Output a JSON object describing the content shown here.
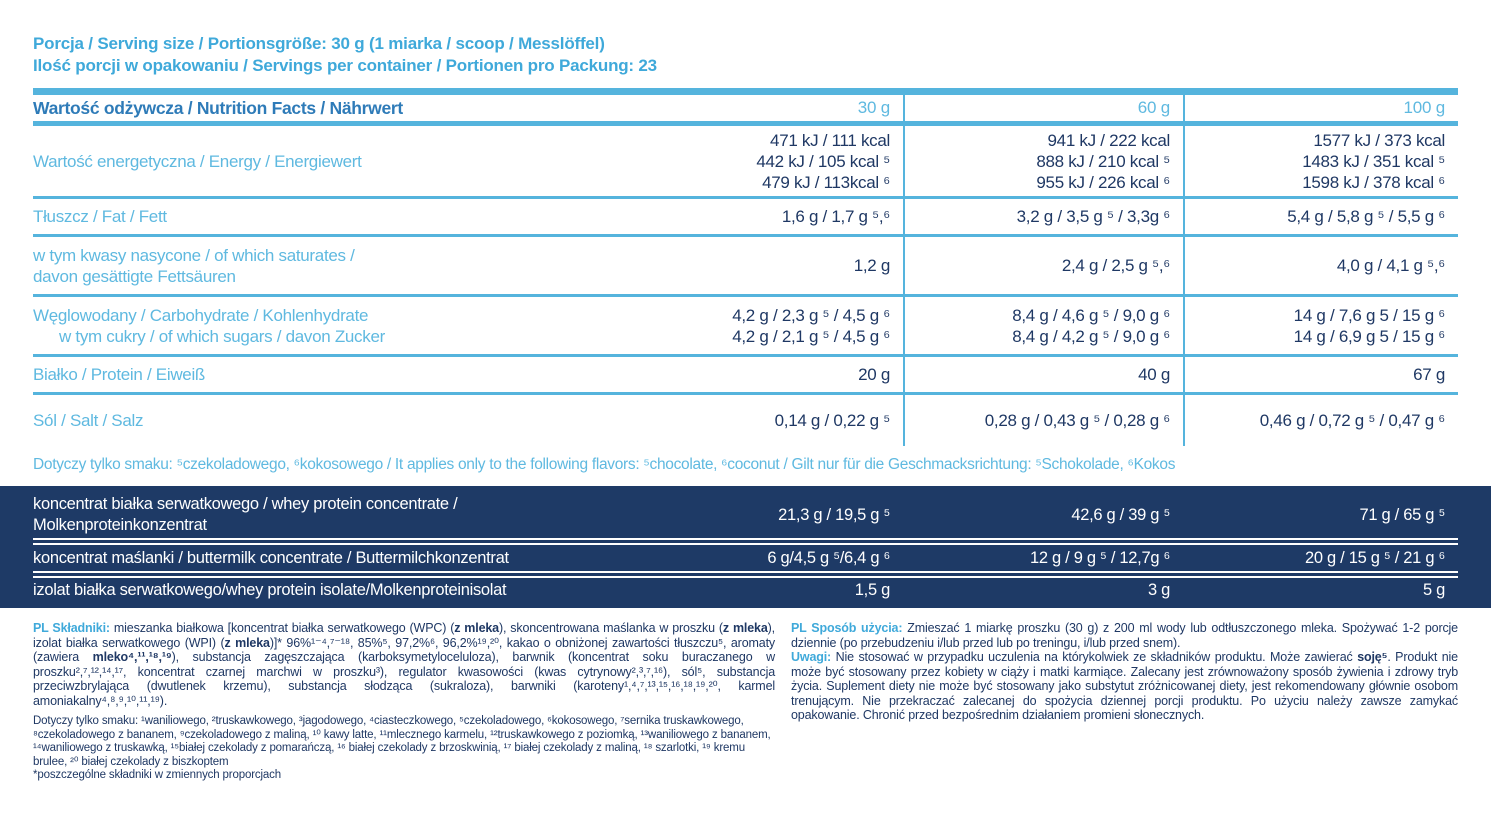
{
  "colors": {
    "cyan_accent": "#3FA9DA",
    "label_cyan": "#5FB9E0",
    "line_cyan": "#55B4DD",
    "header_blue": "#2E7BB8",
    "value_navy": "#1F3864",
    "navy_background": "#1E3A66",
    "white": "#FFFFFF"
  },
  "serving": {
    "line1": "Porcja / Serving size / Portionsgröße: 30 g (1 miarka / scoop / Messlöffel)",
    "line2": "Ilość porcji w opakowaniu / Servings per container / Portionen pro Packung: 23"
  },
  "nutrition_table": {
    "title": "Wartość odżywcza / Nutrition Facts / Nährwert",
    "columns": [
      "30 g",
      "60 g",
      "100 g"
    ],
    "rows": [
      {
        "label_lines": [
          "Wartość energetyczna / Energy / Energiewert"
        ],
        "values": [
          [
            "471 kJ / 111 kcal",
            "442 kJ / 105 kcal ⁵",
            "479 kJ / 113kcal ⁶"
          ],
          [
            "941 kJ / 222 kcal",
            "888 kJ / 210 kcal ⁵",
            "955 kJ / 226 kcal ⁶"
          ],
          [
            "1577 kJ / 373 kcal",
            "1483 kJ / 351 kcal ⁵",
            "1598 kJ / 378 kcal ⁶"
          ]
        ]
      },
      {
        "label_lines": [
          "Tłuszcz / Fat / Fett"
        ],
        "values": [
          [
            "1,6 g / 1,7 g ⁵,⁶"
          ],
          [
            "3,2 g / 3,5 g ⁵ / 3,3g ⁶"
          ],
          [
            "5,4 g / 5,8 g ⁵ / 5,5 g ⁶"
          ]
        ]
      },
      {
        "label_lines": [
          "w tym kwasy nasycone / of which saturates /",
          "davon gesättigte Fettsäuren"
        ],
        "values": [
          [
            "1,2 g"
          ],
          [
            "2,4 g / 2,5 g ⁵,⁶"
          ],
          [
            "4,0 g / 4,1 g ⁵,⁶"
          ]
        ]
      },
      {
        "label_lines": [
          "Węglowodany / Carbohydrate / Kohlenhydrate",
          "w tym cukry / of which sugars / davon Zucker"
        ],
        "indent_second": true,
        "values": [
          [
            "4,2 g / 2,3 g ⁵ / 4,5 g ⁶",
            "4,2 g / 2,1 g ⁵ / 4,5 g ⁶"
          ],
          [
            "8,4 g / 4,6 g ⁵ / 9,0 g ⁶",
            "8,4 g / 4,2 g ⁵ / 9,0 g ⁶"
          ],
          [
            "14 g / 7,6 g 5 / 15 g ⁶",
            "14 g / 6,9 g 5 / 15 g ⁶"
          ]
        ]
      },
      {
        "label_lines": [
          "Białko / Protein / Eiweiß"
        ],
        "values": [
          [
            "20 g"
          ],
          [
            "40 g"
          ],
          [
            "67 g"
          ]
        ]
      },
      {
        "label_lines": [
          "Sól / Salt / Salz"
        ],
        "values": [
          [
            "0,14 g / 0,22 g ⁵"
          ],
          [
            "0,28 g / 0,43 g ⁵ / 0,28 g ⁶"
          ],
          [
            "0,46 g / 0,72 g ⁵ / 0,47 g ⁶"
          ]
        ]
      }
    ]
  },
  "flavor_note": "Dotyczy tylko smaku: ⁵czekoladowego, ⁶kokosowego / It applies only to the following flavors: ⁵chocolate, ⁶coconut / Gilt nur für die Geschmacksrichtung: ⁵Schokolade, ⁶Kokos",
  "ingredient_table": {
    "rows": [
      {
        "label_lines": [
          "koncentrat białka serwatkowego / whey protein concentrate /",
          "Molkenproteinkonzentrat"
        ],
        "values": [
          [
            "21,3 g / 19,5 g ⁵"
          ],
          [
            "42,6 g / 39 g ⁵"
          ],
          [
            "71 g / 65 g ⁵"
          ]
        ]
      },
      {
        "label_lines": [
          "koncentrat maślanki / buttermilk concentrate / Buttermilchkonzentrat"
        ],
        "values": [
          [
            "6 g/4,5 g ⁵/6,4 g ⁶"
          ],
          [
            "12 g / 9 g ⁵ / 12,7g ⁶"
          ],
          [
            "20 g / 15 g ⁵ / 21 g ⁶"
          ]
        ]
      },
      {
        "label_lines": [
          "izolat białka serwatkowego/whey protein isolate/Molkenproteinisolat"
        ],
        "values": [
          [
            "1,5 g"
          ],
          [
            "3 g"
          ],
          [
            "5 g"
          ]
        ]
      }
    ]
  },
  "footer": {
    "ingredients": [
      {
        "t": "PL Składniki:",
        "c": true
      },
      {
        "t": " mieszanka białkowa [koncentrat białka serwatkowego (WPC) ("
      },
      {
        "t": "z mleka",
        "b": true
      },
      {
        "t": "), skoncentrowana maślanka w proszku ("
      },
      {
        "t": "z mleka",
        "b": true
      },
      {
        "t": "), izolat białka serwatkowego (WPI) ("
      },
      {
        "t": "z mleka",
        "b": true
      },
      {
        "t": ")]* 96%¹⁻⁴,⁷⁻¹⁸, 85%⁵, 97,2%⁶, 96,2%¹⁹,²⁰, kakao o obniżonej zawartości tłuszczu⁵, aromaty (zawiera "
      },
      {
        "t": "mleko⁴,¹¹,¹⁸,¹⁹",
        "b": true
      },
      {
        "t": "), substancja zagęszczająca (karboksymetyloceluloza), barwnik (koncentrat soku buraczanego w proszku²,⁷,¹²,¹⁴,¹⁷, koncentrat czarnej marchwi w proszku³), regulator kwasowości (kwas cytrynowy²,³,⁷,¹⁶), sól⁵, substancja przeciwzbrylająca (dwutlenek krzemu), substancja słodząca (sukraloza), barwniki (karoteny¹,⁴,⁷,¹³,¹⁵,¹⁶,¹⁸,¹⁹,²⁰, karmel amoniakalny⁴,⁸,⁹,¹⁰,¹¹,¹⁹)."
      }
    ],
    "flavors_footnote": [
      {
        "t": "Dotyczy tylko smaku: ¹waniliowego, ²truskawkowego, ³jagodowego, ⁴ciasteczkowego, ⁵czekoladowego, ⁶kokosowego, ⁷sernika truskawkowego, ⁸czekoladowego z bananem, ⁹czekoladowego z maliną, ¹⁰ kawy latte, ¹¹mlecznego karmelu, ¹²truskawkowego z poziomką, ¹³waniliowego z bananem, ¹⁴waniliowego z truskawką, ¹⁵białej czekolady z pomarańczą, ¹⁶ białej czekolady z brzoskwinią, ¹⁷ białej czekolady z maliną, ¹⁸ szarlotki, ¹⁹ kremu brulee, ²⁰ białej czekolady z biszkoptem",
        "br": true
      },
      {
        "t": "*poszczególne składniki w zmiennych proporcjach"
      }
    ],
    "usage": [
      {
        "t": "PL Sposób użycia:",
        "c": true
      },
      {
        "t": " Zmieszać 1 miarkę proszku (30 g) z 200 ml wody lub odtłuszczonego mleka. Spożywać 1-2 porcje dziennie (po przebudzeniu i/lub przed lub po treningu, i/lub przed snem)."
      }
    ],
    "notes": [
      {
        "t": "Uwagi:",
        "c": true
      },
      {
        "t": " Nie stosować w przypadku uczulenia na którykolwiek ze składników produktu. Może zawierać "
      },
      {
        "t": "soję⁵",
        "b": true
      },
      {
        "t": ". Produkt nie może być stosowany przez kobiety w ciąży i matki karmiące. Zalecany jest zrównoważony sposób żywienia i zdrowy tryb życia. Suplement diety nie może być stosowany jako substytut zróżnicowanej diety, jest rekomendowany głównie osobom trenującym. Nie przekraczać zalecanej do spożycia dziennej porcji produktu. Po użyciu należy zawsze zamykać opakowanie. Chronić przed bezpośrednim działaniem promieni słonecznych."
      }
    ]
  }
}
